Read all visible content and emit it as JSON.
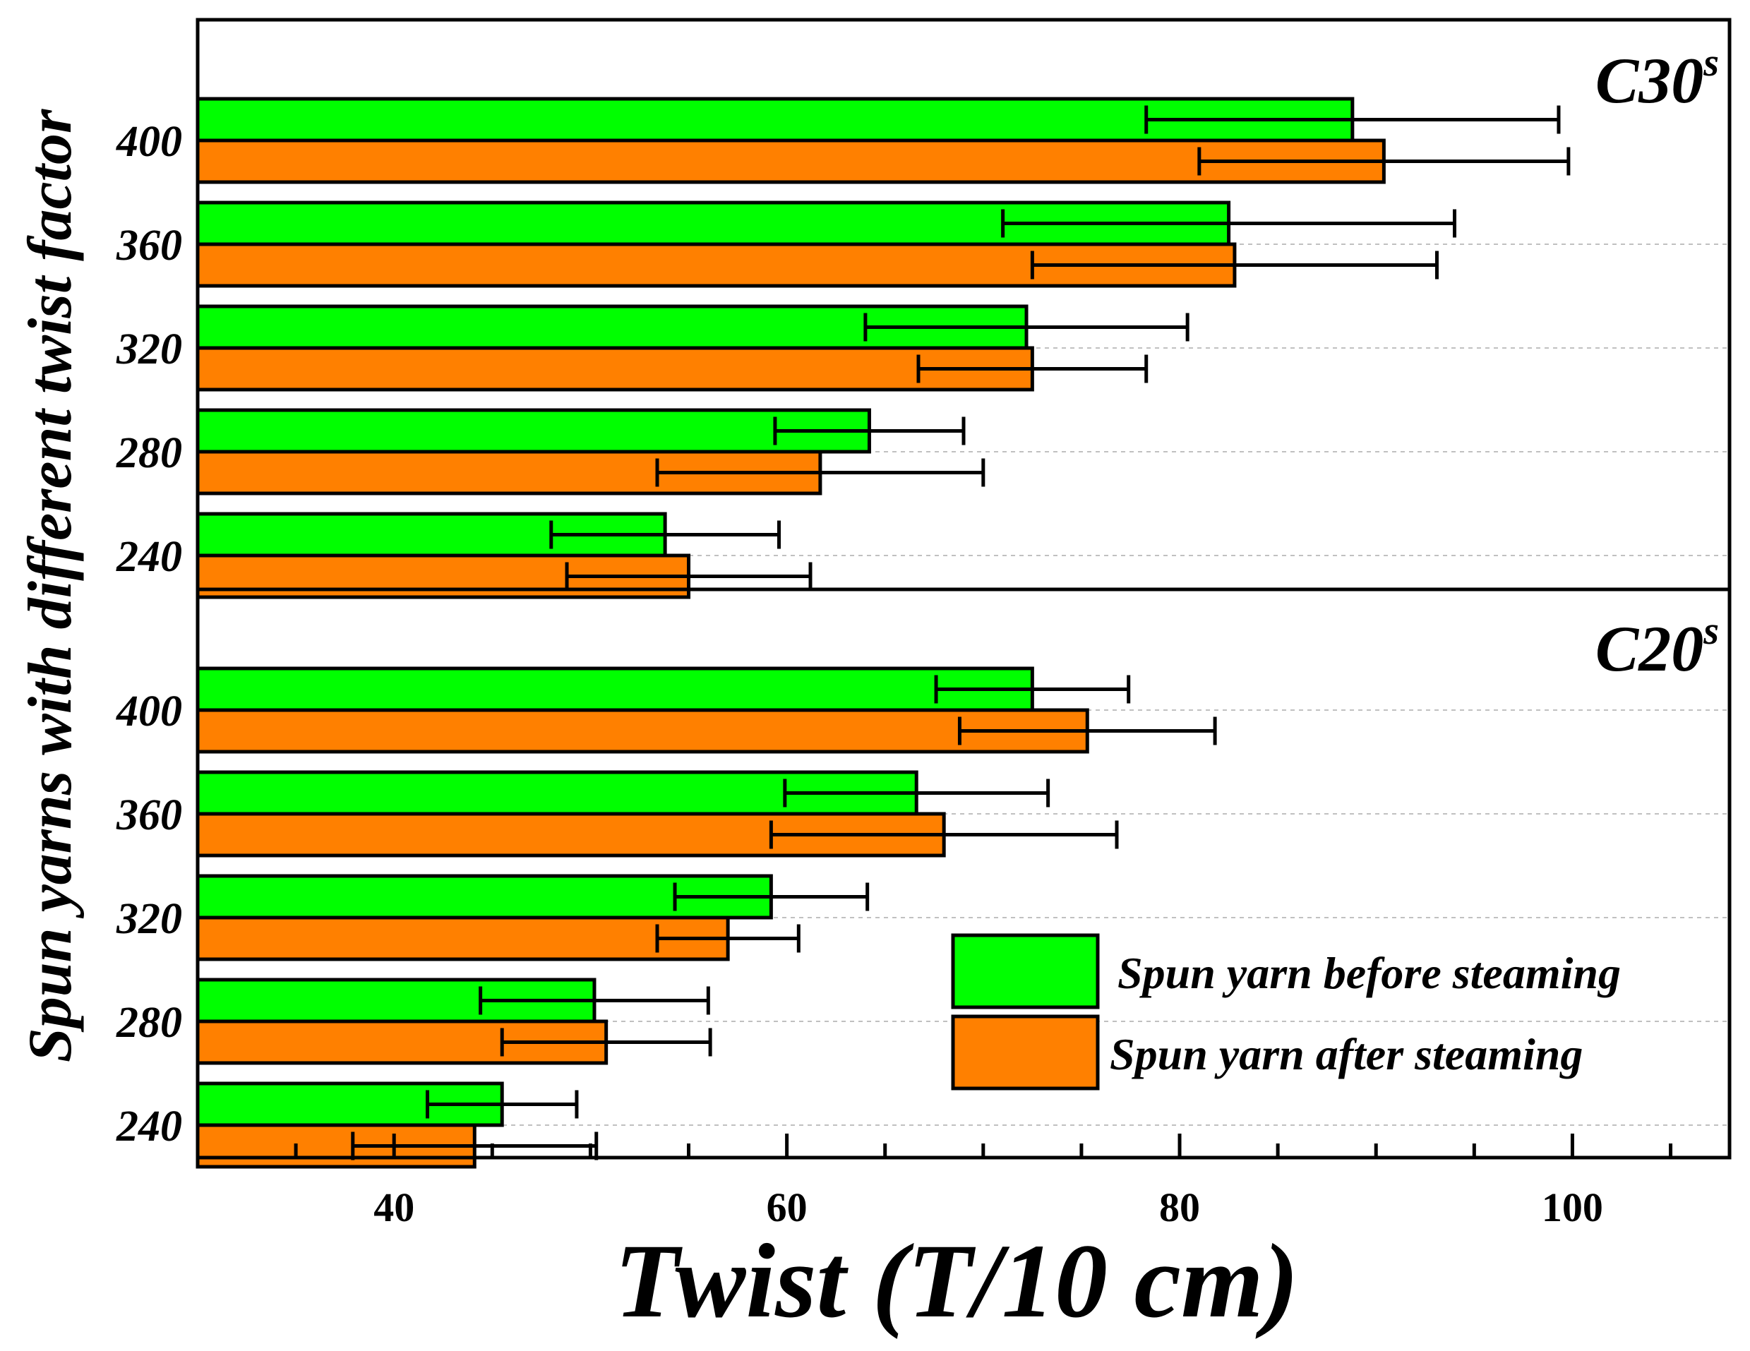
{
  "chart_data": {
    "type": "bar",
    "orientation": "horizontal",
    "xlabel": "Twist (T/10 cm)",
    "ylabel": "Spun yarns with different twist factor",
    "xlim": [
      30,
      108
    ],
    "x_ticks": [
      40,
      60,
      80,
      100
    ],
    "grid": "horizontal dotted",
    "legend_position": "bottom-right",
    "colors": {
      "before": "#00ff00",
      "after": "#ff8000"
    },
    "series_names": [
      "Spun yarn before steaming",
      "Spun yarn after steaming"
    ],
    "panels": [
      {
        "label": "C30",
        "label_sup": "s",
        "categories": [
          "400",
          "360",
          "320",
          "280",
          "240"
        ],
        "series": [
          {
            "values": [
              88.8,
              82.5,
              72.2,
              64.2,
              53.8
            ],
            "errors": [
              10.5,
              11.5,
              8.2,
              4.8,
              5.8
            ]
          },
          {
            "values": [
              90.4,
              82.8,
              72.5,
              61.7,
              55.0
            ],
            "errors": [
              9.4,
              10.3,
              5.8,
              8.3,
              6.2
            ]
          }
        ]
      },
      {
        "label": "C20",
        "label_sup": "s",
        "categories": [
          "400",
          "360",
          "320",
          "280",
          "240"
        ],
        "series": [
          {
            "values": [
              72.5,
              66.6,
              59.2,
              50.2,
              45.5
            ],
            "errors": [
              4.9,
              6.7,
              4.9,
              5.8,
              3.8
            ]
          },
          {
            "values": [
              75.3,
              68.0,
              57.0,
              50.8,
              44.1
            ],
            "errors": [
              6.5,
              8.8,
              3.6,
              5.3,
              6.2
            ]
          }
        ]
      }
    ]
  }
}
